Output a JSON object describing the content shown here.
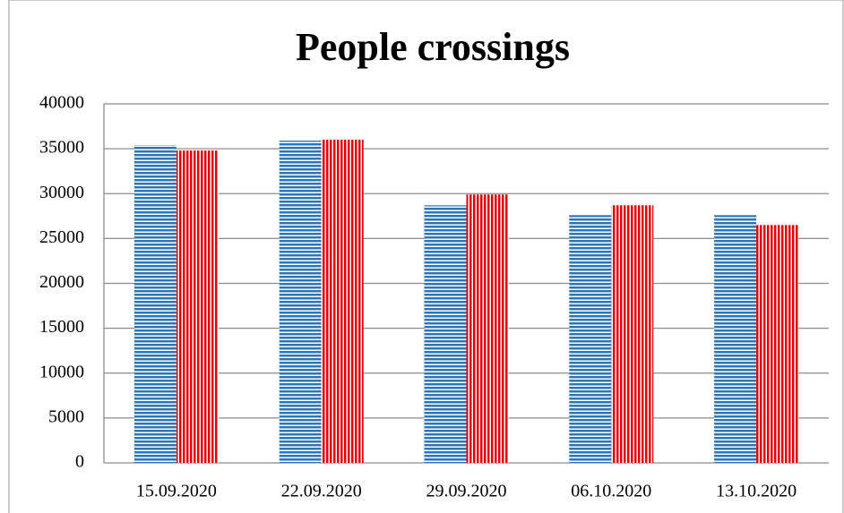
{
  "chart_data": {
    "type": "bar",
    "title": "People crossings",
    "categories": [
      "15.09.2020",
      "22.09.2020",
      "29.09.2020",
      "06.10.2020",
      "13.10.2020"
    ],
    "series": [
      {
        "color": "#2e75b6",
        "values": [
          35400,
          35900,
          28700,
          27600,
          27600
        ]
      },
      {
        "color": "#e00000",
        "values": [
          34800,
          36000,
          29900,
          28700,
          26500
        ]
      }
    ],
    "ylim": [
      0,
      40000
    ],
    "yticks": [
      0,
      5000,
      10000,
      15000,
      20000,
      25000,
      30000,
      35000,
      40000
    ],
    "grid": true
  }
}
